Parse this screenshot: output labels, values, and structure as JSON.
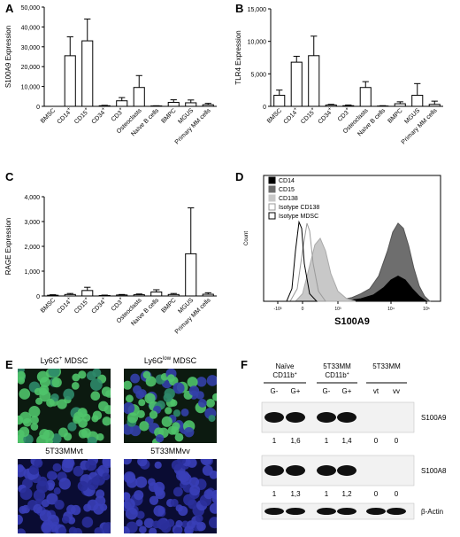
{
  "panels": {
    "A": "A",
    "B": "B",
    "C": "C",
    "D": "D",
    "E": "E",
    "F": "F"
  },
  "chart_data": [
    {
      "type": "bar",
      "panel": "A",
      "ylabel": "S100A9 Expression",
      "ylim": [
        0,
        50000
      ],
      "yticks": [
        "0",
        "10,000",
        "20,000",
        "30,000",
        "40,000",
        "50,000"
      ],
      "categories": [
        "BMSC",
        "CD14+",
        "CD15+",
        "CD34+",
        "CD3+",
        "Osteoclasts",
        "Naïve B cells",
        "BMPC",
        "MGUS",
        "Primary MM cells"
      ],
      "values": [
        0,
        25500,
        33000,
        300,
        2800,
        9500,
        200,
        2000,
        1800,
        800
      ],
      "errors": [
        0,
        9500,
        11000,
        200,
        1600,
        6000,
        100,
        1300,
        1400,
        700
      ]
    },
    {
      "type": "bar",
      "panel": "B",
      "ylabel": "TLR4 Expression",
      "ylim": [
        0,
        15000
      ],
      "yticks": [
        "0",
        "5,000",
        "10,000",
        "15,000"
      ],
      "categories": [
        "BMSC",
        "CD14+",
        "CD15+",
        "CD34+",
        "CD3+",
        "Osteoclasts",
        "Naïve B cells",
        "BMPC",
        "MGUS",
        "Primary MM cells"
      ],
      "values": [
        1700,
        6800,
        7800,
        200,
        100,
        2900,
        50,
        400,
        1700,
        300
      ],
      "errors": [
        800,
        900,
        3000,
        100,
        100,
        900,
        50,
        300,
        1800,
        500
      ]
    },
    {
      "type": "bar",
      "panel": "C",
      "ylabel": "RAGE Expression",
      "ylim": [
        0,
        4000
      ],
      "yticks": [
        "0",
        "1,000",
        "2,000",
        "3,000",
        "4,000"
      ],
      "categories": [
        "BMSC",
        "CD14+",
        "CD15+",
        "CD34+",
        "CD3+",
        "Osteoclasts",
        "Naïve B cells",
        "BMPC",
        "MGUS",
        "Primary MM cells"
      ],
      "values": [
        30,
        60,
        220,
        20,
        40,
        50,
        160,
        60,
        1700,
        70
      ],
      "errors": [
        20,
        40,
        130,
        15,
        20,
        30,
        90,
        40,
        1850,
        60
      ]
    },
    {
      "type": "area",
      "panel": "D",
      "xlabel": "S100A9",
      "ylabel": "Count",
      "xticks": [
        "-10³",
        "0",
        "10³",
        "10⁴",
        "10⁵"
      ],
      "series": [
        {
          "name": "CD14",
          "color": "#000000"
        },
        {
          "name": "CD15",
          "color": "#6e6e6e"
        },
        {
          "name": "CD138",
          "color": "#c8c8c8"
        },
        {
          "name": "Isotype CD138",
          "color": "#9a9a9a"
        },
        {
          "name": "Isotype MDSC",
          "color": "#000000"
        }
      ]
    }
  ],
  "panelE": {
    "images": [
      {
        "label_main": "Ly6G",
        "label_sup": "+",
        "label_rest": " MDSC",
        "stain": "green"
      },
      {
        "label_main": "Ly6G",
        "label_sup": "low",
        "label_rest": " MDSC",
        "stain": "green"
      },
      {
        "label_main": "5T33MMvt",
        "label_sup": "",
        "label_rest": "",
        "stain": "blue"
      },
      {
        "label_main": "5T33MMvv",
        "label_sup": "",
        "label_rest": "",
        "stain": "blue"
      }
    ]
  },
  "panelF": {
    "groups": [
      {
        "line1": "Naïve",
        "line2": "CD11b",
        "sup": "+"
      },
      {
        "line1": "5T33MM",
        "line2": "CD11b",
        "sup": "+"
      },
      {
        "line1": "5T33MM",
        "line2": "",
        "sup": ""
      }
    ],
    "lanes": [
      "G-",
      "G+",
      "G-",
      "G+",
      "vt",
      "vv"
    ],
    "blots": [
      {
        "name": "S100A9",
        "quant": [
          "1",
          "1,6",
          "1",
          "1,4",
          "0",
          "0"
        ]
      },
      {
        "name": "S100A8",
        "quant": [
          "1",
          "1,3",
          "1",
          "1,2",
          "0",
          "0"
        ]
      },
      {
        "name": "β-Actin",
        "quant": []
      }
    ]
  }
}
